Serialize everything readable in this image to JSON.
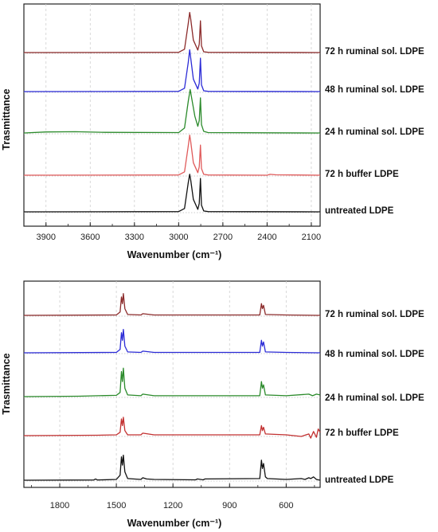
{
  "chart_data": [
    {
      "type": "line",
      "panel": "top",
      "xlabel": "Wavenumber (cm⁻¹)",
      "ylabel": "Trasmittance",
      "xlim": [
        4050,
        2040
      ],
      "x_reversed": true,
      "xticks": [
        3900,
        3600,
        3300,
        3000,
        2700,
        2400,
        2100
      ],
      "grid": true,
      "series": [
        {
          "name": "72 h ruminal sol. LDPE",
          "color": "#8b2a2a",
          "x": [
            4050,
            3000,
            2960,
            2935,
            2925,
            2918,
            2900,
            2870,
            2860,
            2852,
            2845,
            2830,
            2800,
            2040
          ],
          "y": [
            0,
            0.3,
            4,
            35,
            48,
            40,
            15,
            3,
            10,
            38,
            8,
            1,
            0.3,
            0
          ]
        },
        {
          "name": "48 h ruminal sol. LDPE",
          "color": "#2b2bd6",
          "x": [
            4050,
            3000,
            2960,
            2935,
            2925,
            2918,
            2900,
            2870,
            2860,
            2852,
            2845,
            2830,
            2800,
            2040
          ],
          "y": [
            0,
            0.3,
            4,
            35,
            50,
            40,
            15,
            3,
            10,
            40,
            8,
            1,
            0.3,
            0
          ]
        },
        {
          "name": "24 h ruminal sol. LDPE",
          "color": "#2a8a2a",
          "x": [
            4050,
            3900,
            3700,
            3500,
            3000,
            2960,
            2935,
            2922,
            2910,
            2890,
            2870,
            2860,
            2852,
            2845,
            2830,
            2800,
            2040
          ],
          "y": [
            0,
            1.2,
            1.5,
            0.8,
            0.5,
            6,
            38,
            52,
            40,
            20,
            8,
            15,
            42,
            10,
            2,
            0.5,
            0
          ]
        },
        {
          "name": "72 h buffer LDPE",
          "color": "#e05a5a",
          "x": [
            4050,
            3000,
            2960,
            2935,
            2925,
            2918,
            2900,
            2870,
            2860,
            2852,
            2845,
            2830,
            2800,
            2400,
            2380,
            2340,
            2040
          ],
          "y": [
            0,
            0.3,
            4,
            35,
            48,
            40,
            15,
            3,
            10,
            36,
            8,
            1,
            0.3,
            0,
            1,
            0.5,
            0
          ]
        },
        {
          "name": "untreated LDPE",
          "color": "#111111",
          "x": [
            4050,
            3000,
            2960,
            2935,
            2925,
            2918,
            2900,
            2870,
            2860,
            2852,
            2845,
            2830,
            2800,
            2040
          ],
          "y": [
            0,
            0.3,
            4,
            35,
            45,
            38,
            15,
            3,
            10,
            40,
            8,
            1,
            0.3,
            0
          ]
        }
      ]
    },
    {
      "type": "line",
      "panel": "bottom",
      "xlabel": "Wavenumber (cm⁻¹)",
      "ylabel": "Trasmittance",
      "xlim": [
        1990,
        420
      ],
      "x_reversed": true,
      "xticks": [
        1800,
        1500,
        1200,
        900,
        600
      ],
      "grid": true,
      "series": [
        {
          "name": "72 h ruminal sol. LDPE",
          "color": "#8b2a2a",
          "x": [
            1990,
            1500,
            1480,
            1473,
            1468,
            1463,
            1455,
            1440,
            1370,
            1360,
            1300,
            740,
            731,
            726,
            720,
            710,
            600,
            420
          ],
          "y": [
            0,
            0.5,
            4,
            22,
            14,
            26,
            8,
            1,
            0.5,
            2,
            0.5,
            0.5,
            14,
            8,
            12,
            1,
            0.5,
            0
          ]
        },
        {
          "name": "48 h ruminal sol. LDPE",
          "color": "#2b2bd6",
          "x": [
            1990,
            1500,
            1480,
            1473,
            1468,
            1463,
            1455,
            1440,
            1370,
            1360,
            1300,
            740,
            731,
            726,
            720,
            710,
            600,
            420
          ],
          "y": [
            0,
            0.5,
            4,
            24,
            15,
            28,
            8,
            1,
            0.5,
            2,
            0.5,
            0.5,
            15,
            8,
            13,
            1,
            0.5,
            0
          ]
        },
        {
          "name": "24 h ruminal sol. LDPE",
          "color": "#2a8a2a",
          "x": [
            1990,
            1700,
            1600,
            1500,
            1480,
            1473,
            1468,
            1463,
            1455,
            1440,
            1370,
            1360,
            1300,
            740,
            731,
            726,
            720,
            710,
            600,
            480,
            460,
            440,
            420
          ],
          "y": [
            0,
            0.5,
            1,
            1.5,
            5,
            30,
            18,
            34,
            10,
            2,
            1,
            3,
            1,
            1,
            18,
            10,
            14,
            2,
            1,
            3,
            1,
            3,
            2
          ]
        },
        {
          "name": "72 h buffer LDPE",
          "color": "#c23030",
          "x": [
            1990,
            1600,
            1500,
            1480,
            1473,
            1468,
            1463,
            1455,
            1440,
            1370,
            1360,
            1300,
            740,
            731,
            726,
            720,
            710,
            600,
            520,
            480,
            470,
            455,
            440,
            430,
            420
          ],
          "y": [
            0,
            0.5,
            1,
            4,
            20,
            12,
            22,
            6,
            1,
            1,
            3,
            1,
            1,
            12,
            6,
            10,
            2,
            1,
            -1,
            2,
            -3,
            5,
            -2,
            8,
            4
          ]
        },
        {
          "name": "untreated LDPE",
          "color": "#111111",
          "x": [
            1990,
            1620,
            1610,
            1600,
            1500,
            1480,
            1473,
            1468,
            1463,
            1455,
            1440,
            1370,
            1360,
            1340,
            1300,
            1080,
            1070,
            1040,
            1030,
            740,
            731,
            726,
            720,
            710,
            700,
            600,
            520,
            500,
            480,
            470,
            455,
            440,
            420
          ],
          "y": [
            0,
            0.3,
            1.5,
            0.3,
            1,
            6,
            28,
            18,
            30,
            10,
            2,
            1,
            3,
            1.5,
            1,
            0.5,
            1.5,
            0.5,
            1.5,
            2,
            24,
            14,
            20,
            4,
            2,
            1,
            2,
            1,
            3,
            2,
            4,
            1,
            0
          ]
        }
      ]
    }
  ]
}
